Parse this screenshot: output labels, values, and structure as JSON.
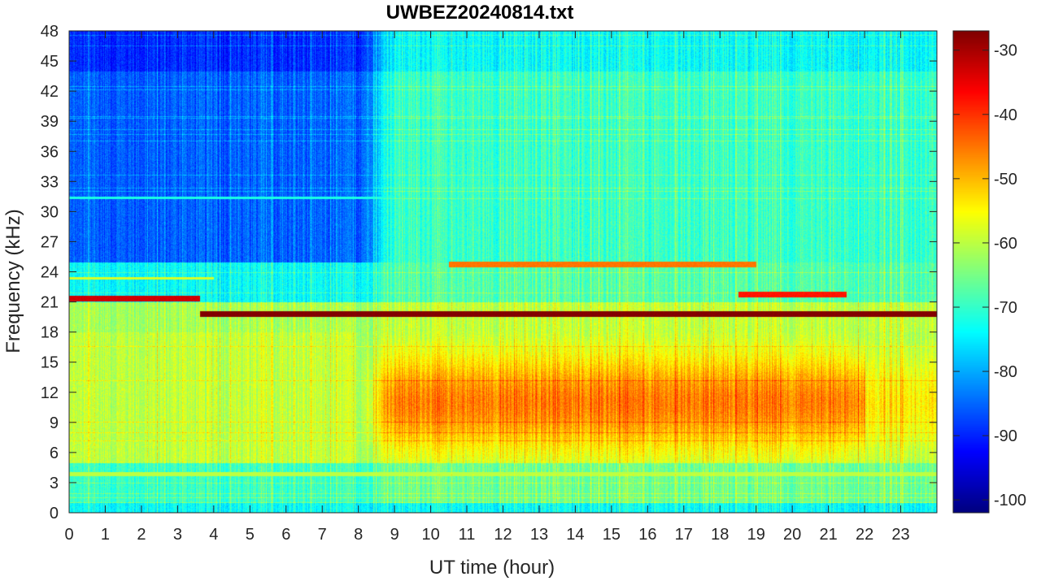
{
  "chart_data": {
    "type": "heatmap",
    "title": "UWBEZ20240814.txt",
    "xlabel": "UT time (hour)",
    "ylabel": "Frequency (kHz)",
    "xlim": [
      0,
      24
    ],
    "ylim": [
      0,
      48
    ],
    "x_ticks": [
      0,
      1,
      2,
      3,
      4,
      5,
      6,
      7,
      8,
      9,
      10,
      11,
      12,
      13,
      14,
      15,
      16,
      17,
      18,
      19,
      20,
      21,
      22,
      23
    ],
    "y_ticks": [
      0,
      3,
      6,
      9,
      12,
      15,
      18,
      21,
      24,
      27,
      30,
      33,
      36,
      39,
      42,
      45,
      48
    ],
    "colorbar": {
      "colormap": "jet",
      "range": [
        -102,
        -27
      ],
      "ticks": [
        -30,
        -40,
        -50,
        -60,
        -70,
        -80,
        -90,
        -100
      ]
    },
    "features": [
      {
        "kind": "horizontal_line",
        "freq_khz": 19.8,
        "t_start": 3.6,
        "t_end": 24,
        "level_db": -27
      },
      {
        "kind": "horizontal_line",
        "freq_khz": 21.4,
        "t_start": 0,
        "t_end": 3.6,
        "level_db": -33
      },
      {
        "kind": "horizontal_line",
        "freq_khz": 21.8,
        "t_start": 18.5,
        "t_end": 21.5,
        "level_db": -38
      },
      {
        "kind": "horizontal_line",
        "freq_khz": 24.8,
        "t_start": 10.5,
        "t_end": 19,
        "level_db": -45
      },
      {
        "kind": "broadband_region",
        "freq_range_khz": [
          6,
          18
        ],
        "t_start": 8.5,
        "t_end": 22,
        "level_db": -50
      },
      {
        "kind": "background",
        "freq_range_khz": [
          25,
          48
        ],
        "t_range": [
          0,
          8
        ],
        "level_db": -85
      }
    ]
  }
}
